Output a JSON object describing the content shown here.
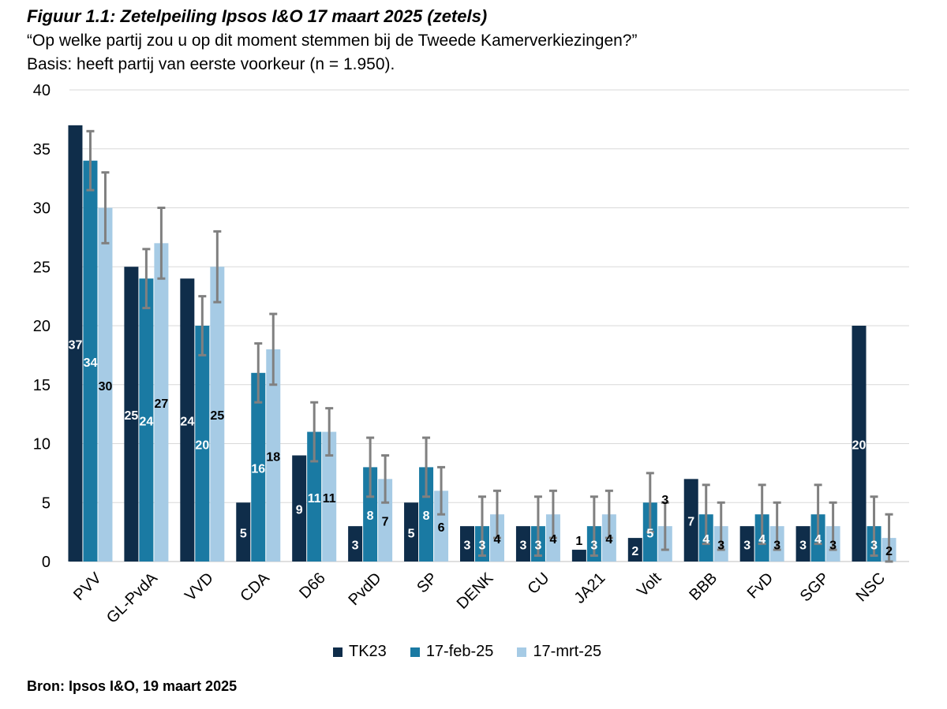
{
  "chart_data": {
    "type": "bar",
    "title": "Figuur 1.1: Zetelpeiling Ipsos I&O 17 maart 2025 (zetels)",
    "subtitle_1": "“Op welke partij zou u op dit moment stemmen bij de Tweede Kamerverkiezingen?”",
    "subtitle_2": "Basis: heeft partij van eerste voorkeur (n = 1.950).",
    "source": "Bron: Ipsos I&O, 19 maart 2025",
    "ylim": [
      0,
      40
    ],
    "yticks": [
      0,
      5,
      10,
      15,
      20,
      25,
      30,
      35,
      40
    ],
    "categories": [
      "PVV",
      "GL-PvdA",
      "VVD",
      "CDA",
      "D66",
      "PvdD",
      "SP",
      "DENK",
      "CU",
      "JA21",
      "Volt",
      "BBB",
      "FvD",
      "SGP",
      "NSC"
    ],
    "series": [
      {
        "name": "TK23",
        "color": "#0f2d4a",
        "values": [
          37,
          25,
          24,
          5,
          9,
          3,
          5,
          3,
          3,
          1,
          2,
          7,
          3,
          3,
          20
        ]
      },
      {
        "name": "17-feb-25",
        "color": "#1a7aa3",
        "values": [
          34,
          24,
          20,
          16,
          11,
          8,
          8,
          3,
          3,
          3,
          5,
          4,
          4,
          4,
          3
        ],
        "error_low": [
          31.5,
          21.5,
          17.5,
          13.5,
          8.5,
          5.5,
          5.5,
          0.5,
          0.5,
          0.5,
          2.5,
          1.5,
          1.5,
          1.5,
          0.5
        ],
        "error_high": [
          36.5,
          26.5,
          22.5,
          18.5,
          13.5,
          10.5,
          10.5,
          5.5,
          5.5,
          5.5,
          7.5,
          6.5,
          6.5,
          6.5,
          5.5
        ]
      },
      {
        "name": "17-mrt-25",
        "color": "#a6cbe5",
        "values": [
          30,
          27,
          25,
          18,
          11,
          7,
          6,
          4,
          4,
          4,
          3,
          3,
          3,
          3,
          2
        ],
        "error_low": [
          27,
          24,
          22,
          15,
          9,
          5,
          4,
          2,
          2,
          2,
          1,
          1,
          1,
          1,
          0
        ],
        "error_high": [
          33,
          30,
          28,
          21,
          13,
          9,
          8,
          6,
          6,
          6,
          5,
          5,
          5,
          5,
          4
        ]
      }
    ]
  }
}
